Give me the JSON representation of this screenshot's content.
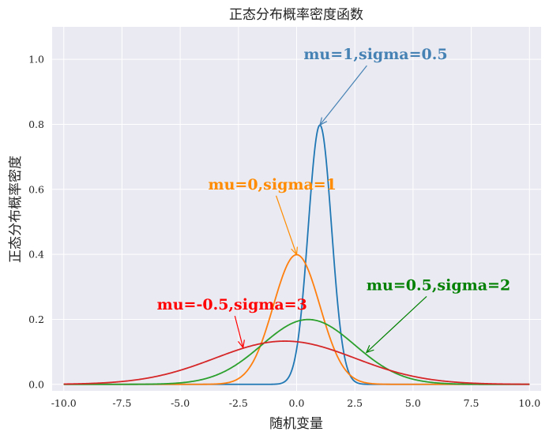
{
  "chart_data": {
    "type": "line",
    "title": "正态分布概率密度函数",
    "xlabel": "随机变量",
    "ylabel": "正态分布概率密度",
    "xlim": [
      -10.5,
      10.5
    ],
    "ylim": [
      -0.02,
      1.1
    ],
    "grid": true,
    "x_ticks": [
      "-10.0",
      "-7.5",
      "-5.0",
      "-2.5",
      "0.0",
      "2.5",
      "5.0",
      "7.5",
      "10.0"
    ],
    "y_ticks": [
      "0.0",
      "0.2",
      "0.4",
      "0.6",
      "0.8",
      "1.0"
    ],
    "x_range": [
      -10,
      10
    ],
    "series": [
      {
        "mu": 1,
        "sigma": 0.5,
        "color": "#1f77b4"
      },
      {
        "mu": 0,
        "sigma": 1,
        "color": "#ff7f0e"
      },
      {
        "mu": 0.5,
        "sigma": 2,
        "color": "#2ca02c"
      },
      {
        "mu": -0.5,
        "sigma": 3,
        "color": "#d62728"
      }
    ],
    "annotations": [
      {
        "text": "mu=1,sigma=0.5",
        "color": "#4682b4",
        "xy": [
          1.0,
          0.798
        ],
        "xytext": [
          0.3,
          1.0
        ]
      },
      {
        "text": "mu=0,sigma=1",
        "color": "#ff8c00",
        "xy": [
          0.0,
          0.399
        ],
        "xytext": [
          -3.8,
          0.6
        ]
      },
      {
        "text": "mu=0.5,sigma=2",
        "color": "#008000",
        "xy": [
          3.0,
          0.098
        ],
        "xytext": [
          3.0,
          0.29
        ]
      },
      {
        "text": "mu=-0.5,sigma=3",
        "color": "#ff0000",
        "xy": [
          -2.3,
          0.113
        ],
        "xytext": [
          -6.0,
          0.23
        ]
      }
    ]
  }
}
